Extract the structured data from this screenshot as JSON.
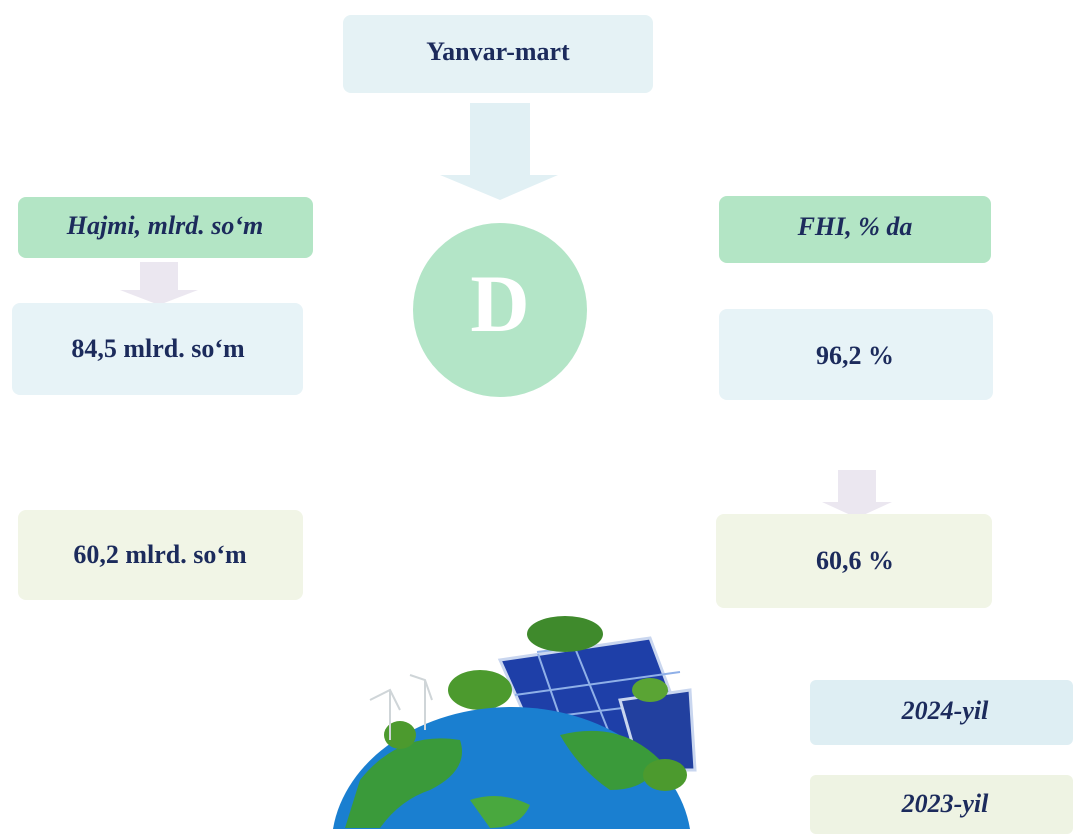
{
  "header": {
    "title": "Yanvar-mart",
    "emblem": "D"
  },
  "left": {
    "label": "Hajmi, mlrd. so‘m",
    "value_2024": "84,5 mlrd. so‘m",
    "value_2023": "60,2 mlrd. so‘m"
  },
  "right": {
    "label": "FHI, % da",
    "value_2024": "96,2 %",
    "value_2023": "60,6 %"
  },
  "legend": {
    "item_2024": "2024-yil",
    "item_2023": "2023-yil"
  }
}
